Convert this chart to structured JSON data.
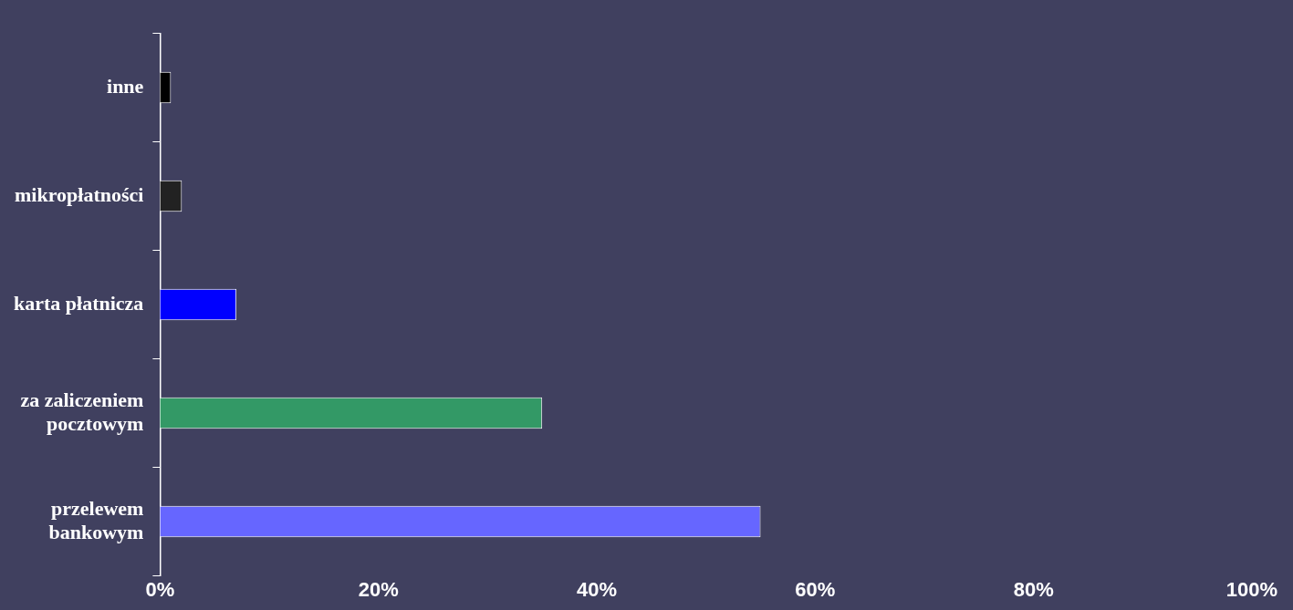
{
  "chart_data": {
    "type": "bar",
    "orientation": "horizontal",
    "categories": [
      "inne",
      "mikropłatności",
      "karta płatnicza",
      "za zaliczeniem pocztowym",
      "przelewem bankowym"
    ],
    "values": [
      1,
      2,
      7,
      35,
      55
    ],
    "colors": [
      "#000000",
      "#222222",
      "#0000ff",
      "#339966",
      "#6666ff"
    ],
    "xlim": [
      0,
      100
    ],
    "xticks": [
      {
        "value": 0,
        "label": "0%"
      },
      {
        "value": 20,
        "label": "20%"
      },
      {
        "value": 40,
        "label": "40%"
      },
      {
        "value": 60,
        "label": "60%"
      },
      {
        "value": 80,
        "label": "80%"
      },
      {
        "value": 100,
        "label": "100%"
      }
    ],
    "grid": false,
    "legend": false
  }
}
